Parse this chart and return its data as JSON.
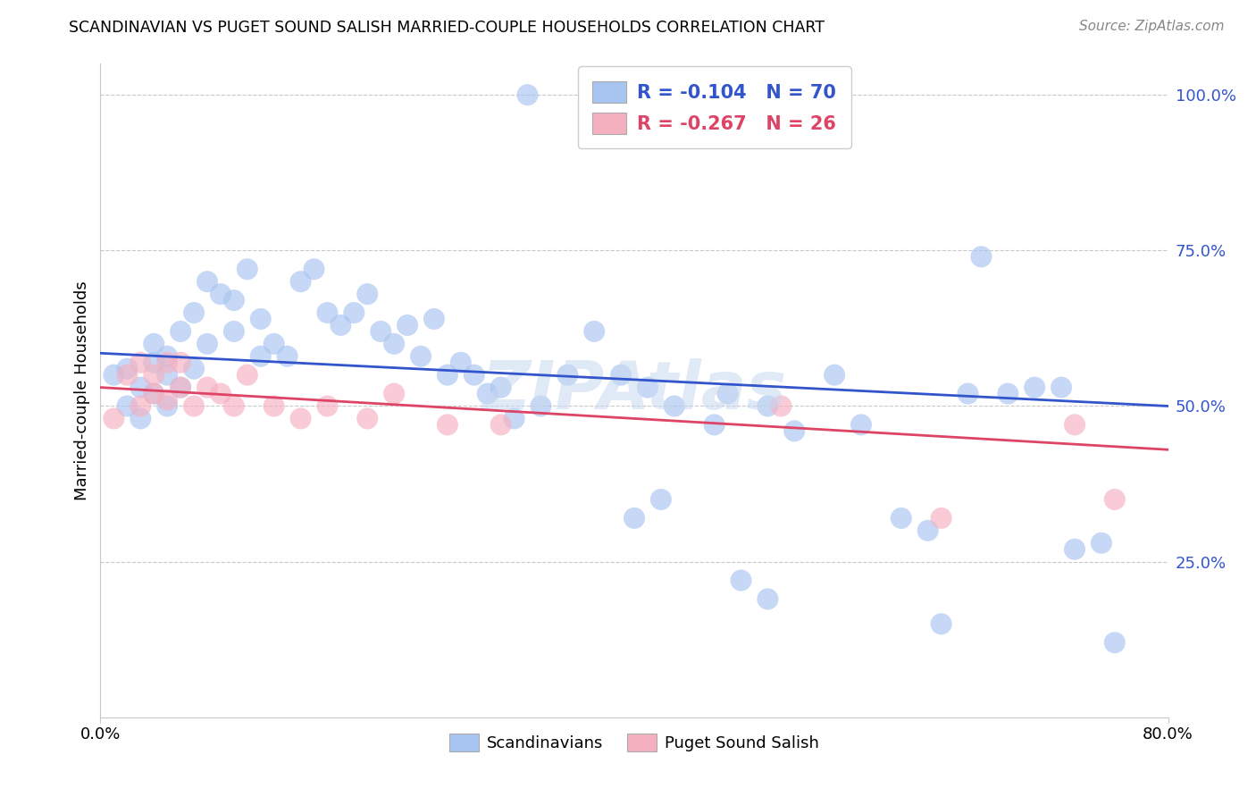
{
  "title": "SCANDINAVIAN VS PUGET SOUND SALISH MARRIED-COUPLE HOUSEHOLDS CORRELATION CHART",
  "source": "Source: ZipAtlas.com",
  "ylabel": "Married-couple Households",
  "ytick_vals": [
    0.25,
    0.5,
    0.75,
    1.0
  ],
  "ytick_labels": [
    "25.0%",
    "50.0%",
    "75.0%",
    "100.0%"
  ],
  "xlim": [
    0.0,
    0.8
  ],
  "ylim": [
    0.0,
    1.05
  ],
  "legend_blue_r": "-0.104",
  "legend_blue_n": "70",
  "legend_pink_r": "-0.267",
  "legend_pink_n": "26",
  "watermark": "ZIPAtlas",
  "blue_color": "#a8c4f0",
  "pink_color": "#f5b0c0",
  "blue_line_color": "#3355cc",
  "pink_line_color": "#dd4466",
  "grid_color": "#c8c8c8",
  "background_color": "#ffffff",
  "blue_x": [
    0.32,
    0.01,
    0.02,
    0.02,
    0.03,
    0.03,
    0.04,
    0.04,
    0.04,
    0.05,
    0.05,
    0.05,
    0.06,
    0.06,
    0.07,
    0.07,
    0.08,
    0.08,
    0.09,
    0.1,
    0.1,
    0.11,
    0.12,
    0.12,
    0.13,
    0.14,
    0.15,
    0.16,
    0.17,
    0.18,
    0.19,
    0.2,
    0.21,
    0.22,
    0.23,
    0.24,
    0.25,
    0.26,
    0.27,
    0.28,
    0.29,
    0.3,
    0.31,
    0.33,
    0.35,
    0.37,
    0.39,
    0.41,
    0.43,
    0.46,
    0.47,
    0.5,
    0.52,
    0.55,
    0.57,
    0.6,
    0.62,
    0.65,
    0.66,
    0.68,
    0.7,
    0.72,
    0.73,
    0.75,
    0.4,
    0.42,
    0.48,
    0.5,
    0.63,
    0.76
  ],
  "blue_y": [
    1.0,
    0.55,
    0.5,
    0.56,
    0.48,
    0.53,
    0.52,
    0.57,
    0.6,
    0.55,
    0.5,
    0.58,
    0.53,
    0.62,
    0.56,
    0.65,
    0.6,
    0.7,
    0.68,
    0.62,
    0.67,
    0.72,
    0.58,
    0.64,
    0.6,
    0.58,
    0.7,
    0.72,
    0.65,
    0.63,
    0.65,
    0.68,
    0.62,
    0.6,
    0.63,
    0.58,
    0.64,
    0.55,
    0.57,
    0.55,
    0.52,
    0.53,
    0.48,
    0.5,
    0.55,
    0.62,
    0.55,
    0.53,
    0.5,
    0.47,
    0.52,
    0.5,
    0.46,
    0.55,
    0.47,
    0.32,
    0.3,
    0.52,
    0.74,
    0.52,
    0.53,
    0.53,
    0.27,
    0.28,
    0.32,
    0.35,
    0.22,
    0.19,
    0.15,
    0.12
  ],
  "pink_x": [
    0.01,
    0.02,
    0.03,
    0.03,
    0.04,
    0.04,
    0.05,
    0.05,
    0.06,
    0.06,
    0.07,
    0.08,
    0.09,
    0.1,
    0.11,
    0.13,
    0.15,
    0.17,
    0.2,
    0.22,
    0.26,
    0.3,
    0.51,
    0.63,
    0.73,
    0.76
  ],
  "pink_y": [
    0.48,
    0.55,
    0.5,
    0.57,
    0.55,
    0.52,
    0.57,
    0.51,
    0.53,
    0.57,
    0.5,
    0.53,
    0.52,
    0.5,
    0.55,
    0.5,
    0.48,
    0.5,
    0.48,
    0.52,
    0.47,
    0.47,
    0.5,
    0.32,
    0.47,
    0.35
  ],
  "blue_line_x0": 0.0,
  "blue_line_x1": 0.8,
  "blue_line_y0": 0.585,
  "blue_line_y1": 0.5,
  "pink_line_x0": 0.0,
  "pink_line_x1": 0.8,
  "pink_line_y0": 0.53,
  "pink_line_y1": 0.43
}
